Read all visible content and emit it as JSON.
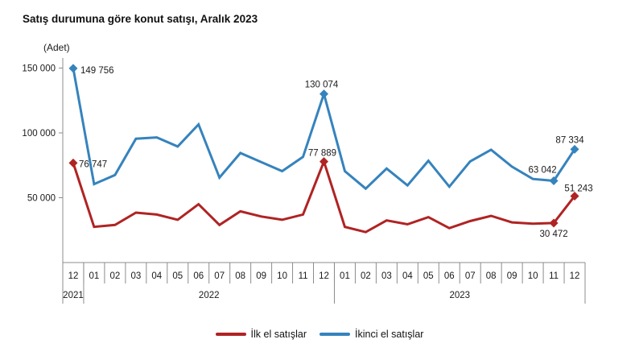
{
  "chart_data": {
    "type": "line",
    "title": "Satış durumuna göre konut satışı, Aralık 2023",
    "y_unit_label": "(Adet)",
    "ylim": [
      0,
      150000
    ],
    "grid": false,
    "legend_position": "bottom-center",
    "axis_color": "#8c8c8c",
    "yticks": [
      {
        "value": 50000,
        "label": "50 000"
      },
      {
        "value": 100000,
        "label": "100 000"
      },
      {
        "value": 150000,
        "label": "150 000"
      }
    ],
    "x_months": [
      "12",
      "01",
      "02",
      "03",
      "04",
      "05",
      "06",
      "07",
      "08",
      "09",
      "10",
      "11",
      "12",
      "01",
      "02",
      "03",
      "04",
      "05",
      "06",
      "07",
      "08",
      "09",
      "10",
      "11",
      "12"
    ],
    "year_groups": [
      {
        "label": "2021",
        "start": 0,
        "count": 1
      },
      {
        "label": "2022",
        "start": 1,
        "count": 12
      },
      {
        "label": "2023",
        "start": 13,
        "count": 12
      }
    ],
    "series": [
      {
        "name": "İlk el satışlar",
        "color": "#b02323",
        "values": [
          76747,
          27500,
          29000,
          38500,
          37000,
          33000,
          45000,
          29000,
          39500,
          35500,
          33000,
          37000,
          77889,
          27500,
          23500,
          32500,
          29500,
          35000,
          26500,
          32000,
          36000,
          31000,
          30000,
          30472,
          51243
        ],
        "labeled_points": [
          {
            "index": 0,
            "label": "76 747",
            "dx": 7,
            "dy": 5,
            "anchor": "start"
          },
          {
            "index": 12,
            "label": "77 889",
            "dx": -2,
            "dy": -7,
            "anchor": "middle"
          },
          {
            "index": 23,
            "label": "30 472",
            "dx": 0,
            "dy": 17,
            "anchor": "middle"
          },
          {
            "index": 24,
            "label": "51 243",
            "dx": 5,
            "dy": -6,
            "anchor": "middle"
          }
        ]
      },
      {
        "name": "İkinci el satışlar",
        "color": "#3583bd",
        "values": [
          149756,
          60500,
          67500,
          95500,
          96500,
          89500,
          106500,
          65500,
          84500,
          77500,
          70500,
          81500,
          130074,
          70500,
          57000,
          72500,
          59500,
          78500,
          58500,
          78000,
          87000,
          74000,
          64500,
          63042,
          87334
        ],
        "labeled_points": [
          {
            "index": 0,
            "label": "149 756",
            "dx": 9,
            "dy": 6,
            "anchor": "start"
          },
          {
            "index": 12,
            "label": "130 074",
            "dx": -3,
            "dy": -8,
            "anchor": "middle"
          },
          {
            "index": 23,
            "label": "63 042",
            "dx": -14,
            "dy": -10,
            "anchor": "middle"
          },
          {
            "index": 24,
            "label": "87 334",
            "dx": -6,
            "dy": -8,
            "anchor": "middle"
          }
        ]
      }
    ]
  }
}
